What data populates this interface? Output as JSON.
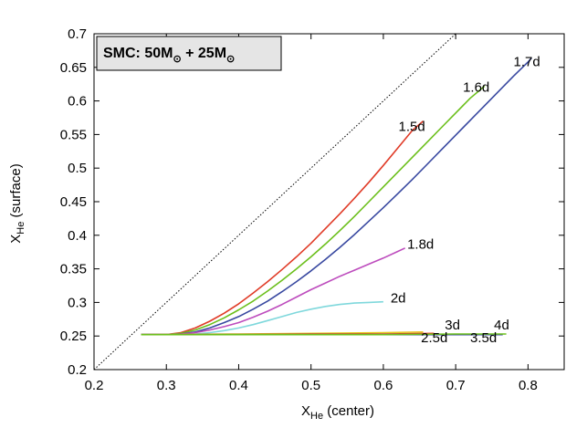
{
  "chart_data": {
    "type": "line",
    "title": "",
    "xlabel": "X",
    "xlabel_sub": "He",
    "xlabel_rest": " (center)",
    "ylabel": "X",
    "ylabel_sub": "He",
    "ylabel_rest": " (surface)",
    "xlim": [
      0.2,
      0.85
    ],
    "ylim": [
      0.2,
      0.7
    ],
    "xticks": [
      0.2,
      0.3,
      0.4,
      0.5,
      0.6,
      0.7,
      0.8
    ],
    "xtick_labels": [
      "0.2",
      "0.3",
      "0.4",
      "0.5",
      "0.6",
      "0.7",
      "0.8"
    ],
    "yticks": [
      0.2,
      0.25,
      0.3,
      0.35,
      0.4,
      0.45,
      0.5,
      0.55,
      0.6,
      0.65,
      0.7
    ],
    "ytick_labels": [
      "0.2",
      "0.25",
      "0.3",
      "0.35",
      "0.4",
      "0.45",
      "0.5",
      "0.55",
      "0.6",
      "0.65",
      "0.7"
    ],
    "grid": false,
    "legend": {
      "text_main": "SMC: 50M",
      "text_plus": " + 25M",
      "placement": "top-left",
      "background": "#e5e5e5"
    },
    "reference_line": {
      "x": [
        0.2,
        0.7
      ],
      "y": [
        0.2,
        0.7
      ],
      "style": "dotted",
      "color": "#000000"
    },
    "series": [
      {
        "name": "1.5d",
        "color": "#e03b27",
        "x": [
          0.265,
          0.3,
          0.32,
          0.34,
          0.36,
          0.38,
          0.4,
          0.42,
          0.44,
          0.46,
          0.48,
          0.5,
          0.52,
          0.54,
          0.56,
          0.58,
          0.6,
          0.62,
          0.64,
          0.655
        ],
        "y": [
          0.252,
          0.252,
          0.255,
          0.262,
          0.272,
          0.284,
          0.298,
          0.314,
          0.331,
          0.349,
          0.368,
          0.388,
          0.41,
          0.432,
          0.455,
          0.479,
          0.504,
          0.53,
          0.556,
          0.57
        ]
      },
      {
        "name": "1.6d",
        "color": "#6bbf1b",
        "x": [
          0.265,
          0.3,
          0.32,
          0.34,
          0.36,
          0.38,
          0.4,
          0.42,
          0.44,
          0.46,
          0.48,
          0.5,
          0.52,
          0.54,
          0.56,
          0.58,
          0.6,
          0.62,
          0.64,
          0.66,
          0.68,
          0.7,
          0.72,
          0.74
        ],
        "y": [
          0.252,
          0.252,
          0.254,
          0.259,
          0.267,
          0.277,
          0.289,
          0.302,
          0.317,
          0.333,
          0.35,
          0.368,
          0.387,
          0.407,
          0.428,
          0.45,
          0.472,
          0.494,
          0.516,
          0.538,
          0.56,
          0.582,
          0.604,
          0.622
        ]
      },
      {
        "name": "1.7d",
        "color": "#3848a0",
        "x": [
          0.265,
          0.3,
          0.32,
          0.34,
          0.36,
          0.38,
          0.4,
          0.42,
          0.44,
          0.46,
          0.48,
          0.5,
          0.52,
          0.54,
          0.56,
          0.58,
          0.6,
          0.62,
          0.64,
          0.66,
          0.68,
          0.7,
          0.72,
          0.74,
          0.76,
          0.78,
          0.8,
          0.805
        ],
        "y": [
          0.252,
          0.252,
          0.253,
          0.256,
          0.262,
          0.27,
          0.279,
          0.29,
          0.302,
          0.316,
          0.331,
          0.347,
          0.364,
          0.382,
          0.401,
          0.421,
          0.441,
          0.462,
          0.483,
          0.505,
          0.527,
          0.549,
          0.571,
          0.593,
          0.615,
          0.637,
          0.658,
          0.664
        ]
      },
      {
        "name": "1.8d",
        "color": "#bd4cbd",
        "x": [
          0.265,
          0.3,
          0.32,
          0.34,
          0.36,
          0.38,
          0.4,
          0.42,
          0.44,
          0.46,
          0.48,
          0.5,
          0.52,
          0.54,
          0.56,
          0.58,
          0.6,
          0.62,
          0.63
        ],
        "y": [
          0.252,
          0.252,
          0.253,
          0.255,
          0.259,
          0.264,
          0.27,
          0.278,
          0.287,
          0.297,
          0.308,
          0.319,
          0.329,
          0.339,
          0.348,
          0.357,
          0.366,
          0.376,
          0.381
        ]
      },
      {
        "name": "2d",
        "color": "#7fd8dc",
        "x": [
          0.265,
          0.3,
          0.32,
          0.34,
          0.36,
          0.38,
          0.4,
          0.42,
          0.44,
          0.46,
          0.48,
          0.5,
          0.52,
          0.54,
          0.56,
          0.58,
          0.6
        ],
        "y": [
          0.252,
          0.252,
          0.252,
          0.253,
          0.255,
          0.258,
          0.262,
          0.267,
          0.273,
          0.279,
          0.285,
          0.29,
          0.294,
          0.297,
          0.299,
          0.3,
          0.301
        ]
      },
      {
        "name": "2.5d",
        "color": "#e8c41a",
        "x": [
          0.265,
          0.4,
          0.5,
          0.6,
          0.655
        ],
        "y": [
          0.252,
          0.253,
          0.254,
          0.255,
          0.256
        ]
      },
      {
        "name": "3d",
        "color": "#e03b27",
        "x": [
          0.265,
          0.4,
          0.5,
          0.6,
          0.67
        ],
        "y": [
          0.252,
          0.252,
          0.253,
          0.253,
          0.254
        ]
      },
      {
        "name": "3.5d",
        "color": "#3848a0",
        "x": [
          0.265,
          0.4,
          0.5,
          0.6,
          0.7,
          0.765
        ],
        "y": [
          0.252,
          0.252,
          0.252,
          0.252,
          0.252,
          0.252
        ]
      },
      {
        "name": "4d",
        "color": "#6bbf1b",
        "x": [
          0.265,
          0.4,
          0.5,
          0.6,
          0.7,
          0.77
        ],
        "y": [
          0.252,
          0.252,
          0.252,
          0.252,
          0.253,
          0.253
        ]
      }
    ],
    "series_labels": [
      {
        "text": "1.5d",
        "x": 0.621,
        "y": 0.555
      },
      {
        "text": "1.6d",
        "x": 0.71,
        "y": 0.614
      },
      {
        "text": "1.7d",
        "x": 0.78,
        "y": 0.652
      },
      {
        "text": "1.8d",
        "x": 0.633,
        "y": 0.38
      },
      {
        "text": "2d",
        "x": 0.61,
        "y": 0.3
      },
      {
        "text": "3d",
        "x": 0.685,
        "y": 0.26
      },
      {
        "text": "4d",
        "x": 0.753,
        "y": 0.26
      },
      {
        "text": "2.5d",
        "x": 0.652,
        "y": 0.241
      },
      {
        "text": "3.5d",
        "x": 0.72,
        "y": 0.241
      }
    ]
  }
}
